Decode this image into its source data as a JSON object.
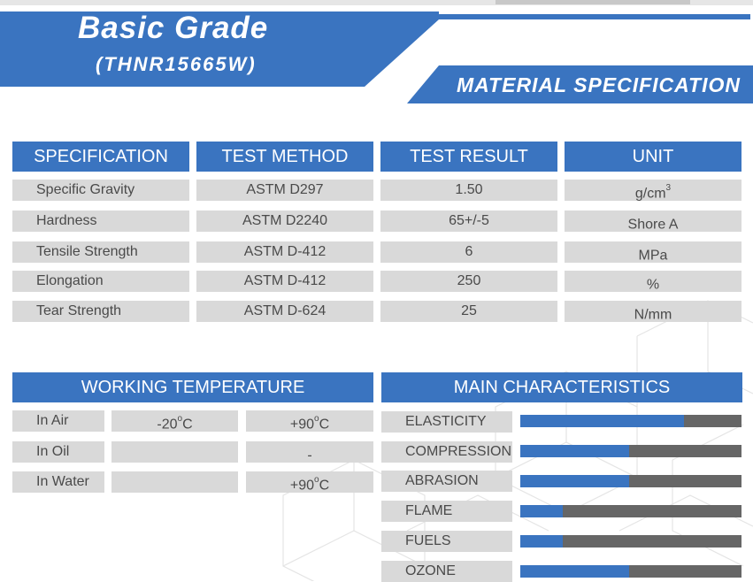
{
  "header": {
    "title": "Basic Grade",
    "subtitle": "(THNR15665W)",
    "section_label": "MATERIAL SPECIFICATION"
  },
  "spec_table": {
    "headers": [
      "SPECIFICATION",
      "TEST METHOD",
      "TEST RESULT",
      "UNIT"
    ],
    "rows": [
      {
        "spec": "Specific Gravity",
        "method": "ASTM D297",
        "result": "1.50",
        "unit": "g/cm",
        "unit_sup": "3"
      },
      {
        "spec": "Hardness",
        "method": "ASTM D2240",
        "result": "65+/-5",
        "unit": "Shore A",
        "unit_sup": ""
      },
      {
        "spec": "Tensile Strength",
        "method": "ASTM D-412",
        "result": "6",
        "unit": "MPa",
        "unit_sup": ""
      },
      {
        "spec": "Elongation",
        "method": "ASTM D-412",
        "result": "250",
        "unit": "%",
        "unit_sup": ""
      },
      {
        "spec": "Tear Strength",
        "method": "ASTM D-624",
        "result": "25",
        "unit": "N/mm",
        "unit_sup": ""
      }
    ]
  },
  "working_temperature": {
    "title": "WORKING TEMPERATURE",
    "rows": [
      {
        "medium": "In Air",
        "low": "-20",
        "low_sup": "o",
        "low_unit": "C",
        "high": "+90",
        "high_sup": "o",
        "high_unit": "C"
      },
      {
        "medium": "In Oil",
        "low": "",
        "low_sup": "",
        "low_unit": "",
        "high": "-",
        "high_sup": "",
        "high_unit": ""
      },
      {
        "medium": "In Water",
        "low": "",
        "low_sup": "",
        "low_unit": "",
        "high": "+90",
        "high_sup": "o",
        "high_unit": "C"
      }
    ]
  },
  "main_characteristics": {
    "title": "MAIN CHARACTERISTICS",
    "items": [
      {
        "label": "ELASTICITY",
        "level": 0.74
      },
      {
        "label": "COMPRESSION",
        "level": 0.49
      },
      {
        "label": "ABRASION",
        "level": 0.49
      },
      {
        "label": "FLAME",
        "level": 0.19
      },
      {
        "label": "FUELS",
        "level": 0.19
      },
      {
        "label": "OZONE",
        "level": 0.49
      }
    ]
  },
  "colors": {
    "accent_blue": "#3a74c0",
    "cell_gray": "#d9d9d9",
    "bar_track": "#666666"
  }
}
